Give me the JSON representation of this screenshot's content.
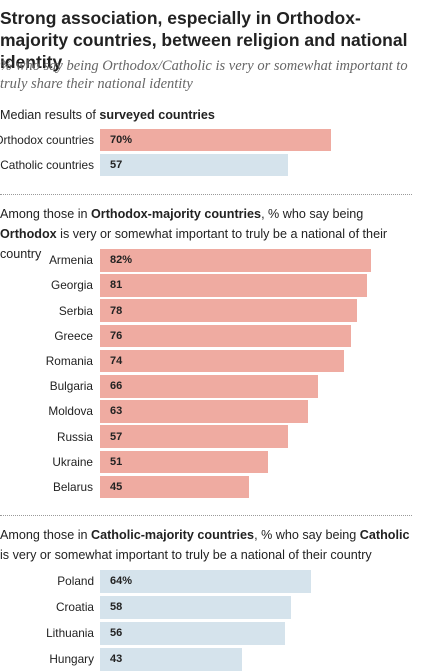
{
  "title": "Strong association, especially in Orthodox-majority countries, between religion and national identity",
  "subtitle": "% who say being Orthodox/Catholic is very or somewhat important to truly share their national identity",
  "sections": [
    {
      "heading_plain_1": "Median results of ",
      "heading_bold_1": "surveyed countries",
      "heading_plain_2": "",
      "heading_bold_2": "",
      "heading_plain_3": ""
    },
    {
      "heading_plain_1": "Among those in ",
      "heading_bold_1": "Orthodox-majority countries",
      "heading_plain_2": ", % who say being ",
      "heading_bold_2": "Orthodox",
      "heading_plain_3": " is very or somewhat important to truly be a national of their country"
    },
    {
      "heading_plain_1": "Among those in ",
      "heading_bold_1": "Catholic-majority countries",
      "heading_plain_2": ", % who say being ",
      "heading_bold_2": "Catholic",
      "heading_plain_3": " is very or somewhat important to truly be a national of their country"
    }
  ],
  "colors": {
    "orthodox": "#efaba1",
    "catholic": "#d5e3ec"
  },
  "chart_data": [
    {
      "type": "bar",
      "orientation": "horizontal",
      "xlim": [
        0,
        100
      ],
      "categories": [
        "Orthodox countries",
        "Catholic countries"
      ],
      "values": [
        70,
        57
      ],
      "value_labels": [
        "70%",
        "57"
      ],
      "bar_colors": [
        "orthodox",
        "catholic"
      ]
    },
    {
      "type": "bar",
      "orientation": "horizontal",
      "xlim": [
        0,
        100
      ],
      "categories": [
        "Armenia",
        "Georgia",
        "Serbia",
        "Greece",
        "Romania",
        "Bulgaria",
        "Moldova",
        "Russia",
        "Ukraine",
        "Belarus"
      ],
      "values": [
        82,
        81,
        78,
        76,
        74,
        66,
        63,
        57,
        51,
        45
      ],
      "value_labels": [
        "82%",
        "81",
        "78",
        "76",
        "74",
        "66",
        "63",
        "57",
        "51",
        "45"
      ],
      "bar_colors": [
        "orthodox"
      ]
    },
    {
      "type": "bar",
      "orientation": "horizontal",
      "xlim": [
        0,
        100
      ],
      "categories": [
        "Poland",
        "Croatia",
        "Lithuania",
        "Hungary"
      ],
      "values": [
        64,
        58,
        56,
        43
      ],
      "value_labels": [
        "64%",
        "58",
        "56",
        "43"
      ],
      "bar_colors": [
        "catholic"
      ]
    }
  ]
}
